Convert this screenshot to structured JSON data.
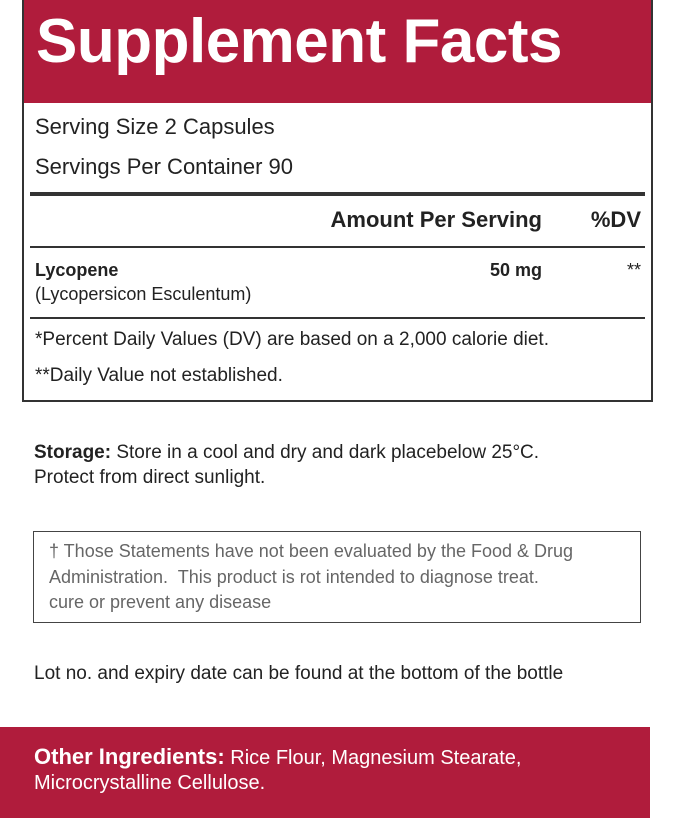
{
  "title": "Supplement Facts",
  "serving_size": "Serving Size 2 Capsules",
  "servings_per_container": "Servings Per Container 90",
  "table": {
    "header": [
      "Amount Per Serving",
      "%DV"
    ],
    "rows": [
      {
        "name": "Lycopene",
        "source": "(Lycopersicon Esculentum)",
        "amount": "50 mg",
        "dv": "**"
      }
    ]
  },
  "footnotes": [
    "*Percent Daily Values (DV) are based on a 2,000 calorie diet.",
    "**Daily Value not established."
  ],
  "storage": {
    "label": "Storage:",
    "lines": [
      "Store in a cool and dry and dark placebelow 25°C.",
      "Protect from direct sunlight."
    ]
  },
  "disclaimer": {
    "lines": [
      "† Those Statements have not been evaluated by the Food & Drug",
      "Administration.  This product is rot intended to diagnose treat.",
      "cure or prevent any disease"
    ]
  },
  "lot_note": "Lot no. and expiry date can be found at the bottom of the bottle",
  "other_ingredients": {
    "label": "Other Ingredients:",
    "lines": [
      "Rice Flour, Magnesium Stearate,",
      "Microcrystalline Cellulose."
    ]
  }
}
